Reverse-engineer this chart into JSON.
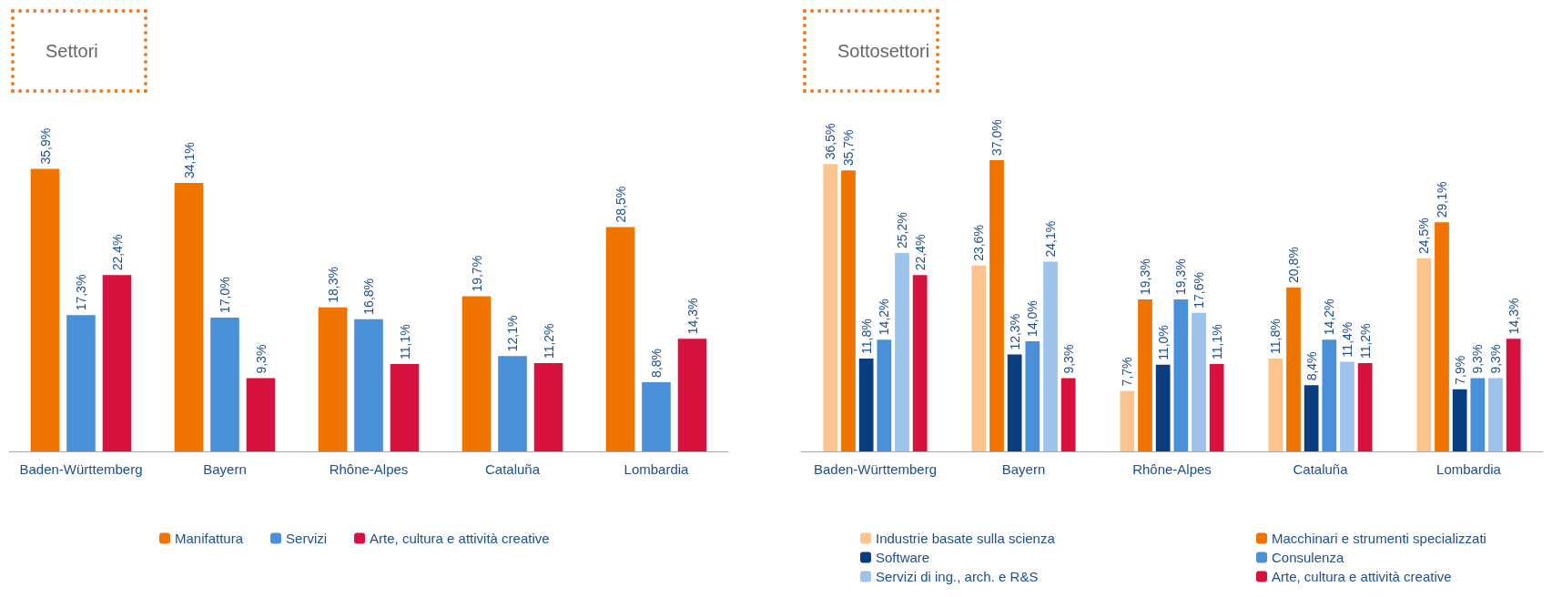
{
  "chart_data": [
    {
      "type": "bar",
      "title": "Settori",
      "categories": [
        "Baden-Württemberg",
        "Bayern",
        "Rhône-Alpes",
        "Cataluña",
        "Lombardia"
      ],
      "legend": "bottom",
      "series": [
        {
          "name": "Manifattura",
          "color": "#ef7500",
          "values": [
            35.9,
            34.1,
            18.3,
            19.7,
            28.5
          ],
          "value_labels": [
            "35,9%",
            "34,1%",
            "18,3%",
            "19,7%",
            "28,5%"
          ]
        },
        {
          "name": "Servizi",
          "color": "#4a90d9",
          "values": [
            17.3,
            17.0,
            16.8,
            12.1,
            8.8
          ],
          "value_labels": [
            "17,3%",
            "17,0%",
            "16,8%",
            "12,1%",
            "8,8%"
          ]
        },
        {
          "name": "Arte, cultura e attività creative",
          "color": "#d7123f",
          "values": [
            22.4,
            9.3,
            11.1,
            11.2,
            14.3
          ],
          "value_labels": [
            "22,4%",
            "9,3%",
            "11,1%",
            "11,2%",
            "14,3%"
          ]
        }
      ]
    },
    {
      "type": "bar",
      "title": "Sottosettori",
      "categories": [
        "Baden-Württemberg",
        "Bayern",
        "Rhône-Alpes",
        "Cataluña",
        "Lombardia"
      ],
      "legend": "bottom",
      "series": [
        {
          "name": "Industrie basate sulla scienza",
          "color": "#fbc48f",
          "values": [
            36.5,
            23.6,
            7.7,
            11.8,
            24.5
          ],
          "value_labels": [
            "36,5%",
            "23,6%",
            "7,7%",
            "11,8%",
            "24,5%"
          ]
        },
        {
          "name": "Macchinari e strumenti specializzati",
          "color": "#ef7500",
          "values": [
            35.7,
            37.0,
            19.3,
            20.8,
            29.1
          ],
          "value_labels": [
            "35,7%",
            "37,0%",
            "19,3%",
            "20,8%",
            "29,1%"
          ]
        },
        {
          "name": "Software",
          "color": "#0a3d80",
          "values": [
            11.8,
            12.3,
            11.0,
            8.4,
            7.9
          ],
          "value_labels": [
            "11,8%",
            "12,3%",
            "11,0%",
            "8,4%",
            "7,9%"
          ]
        },
        {
          "name": "Consulenza",
          "color": "#4a90d9",
          "values": [
            14.2,
            14.0,
            19.3,
            14.2,
            9.3
          ],
          "value_labels": [
            "14,2%",
            "14,0%",
            "19,3%",
            "14,2%",
            "9,3%"
          ]
        },
        {
          "name": "Servizi di ing., arch. e R&S",
          "color": "#9dc3ea",
          "values": [
            25.2,
            24.1,
            17.6,
            11.4,
            9.3
          ],
          "value_labels": [
            "25,2%",
            "24,1%",
            "17,6%",
            "11,4%",
            "9,3%"
          ]
        },
        {
          "name": "Arte, cultura e attività creative",
          "color": "#d7123f",
          "values": [
            22.4,
            9.3,
            11.1,
            11.2,
            14.3
          ],
          "value_labels": [
            "22,4%",
            "9,3%",
            "11,1%",
            "11,2%",
            "14,3%"
          ]
        }
      ]
    }
  ]
}
